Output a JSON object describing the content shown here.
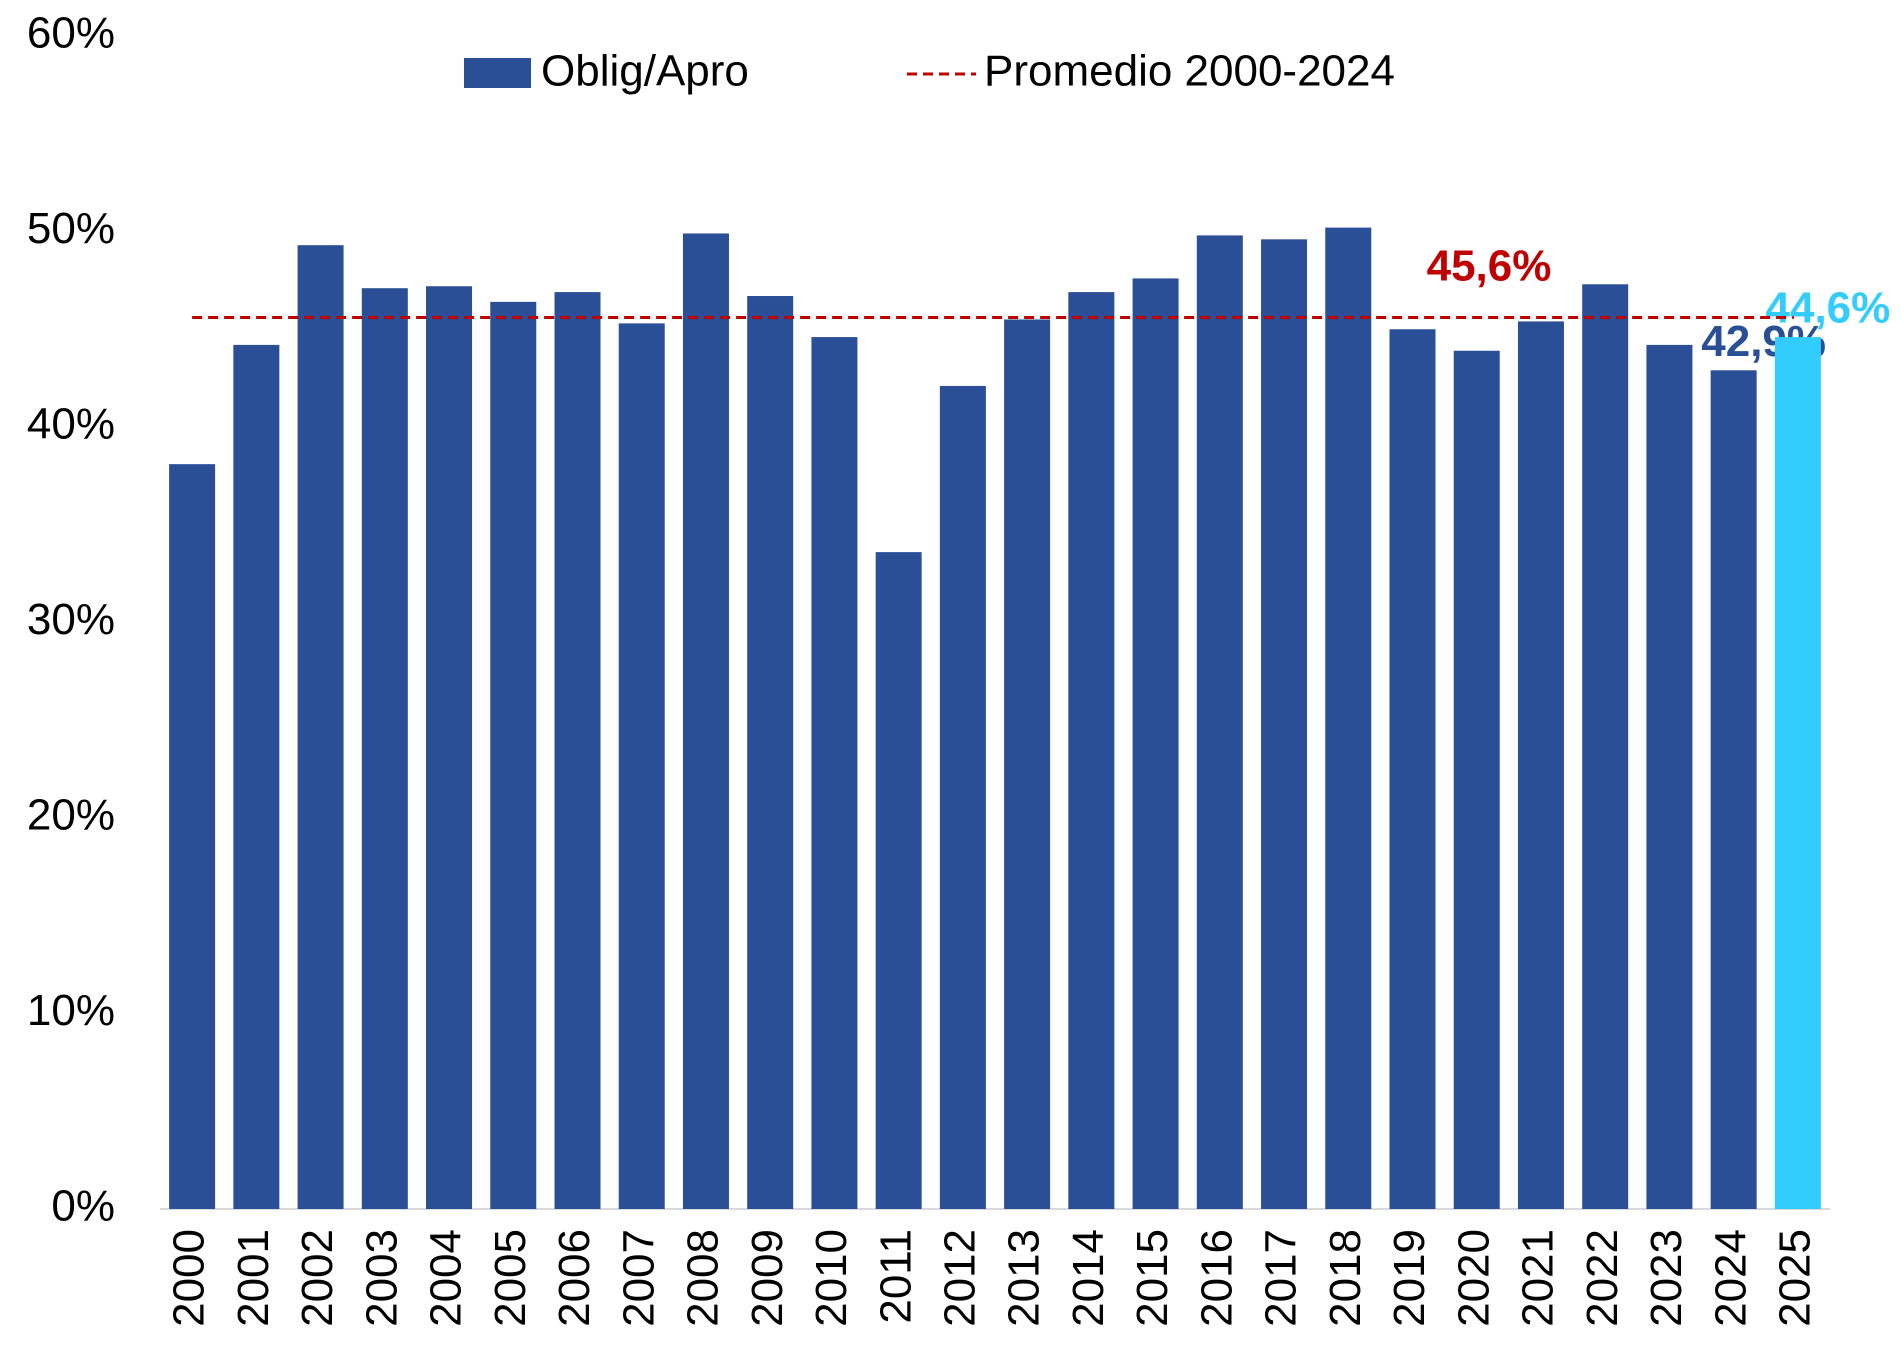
{
  "chart_data": {
    "type": "bar",
    "categories": [
      "2000",
      "2001",
      "2002",
      "2003",
      "2004",
      "2005",
      "2006",
      "2007",
      "2008",
      "2009",
      "2010",
      "2011",
      "2012",
      "2013",
      "2014",
      "2015",
      "2016",
      "2017",
      "2018",
      "2019",
      "2020",
      "2021",
      "2022",
      "2023",
      "2024",
      "2025"
    ],
    "series": [
      {
        "name": "Oblig/Apro",
        "color": "#2a4f96",
        "colors": [
          "#2a4f96",
          "#2a4f96",
          "#2a4f96",
          "#2a4f96",
          "#2a4f96",
          "#2a4f96",
          "#2a4f96",
          "#2a4f96",
          "#2a4f96",
          "#2a4f96",
          "#2a4f96",
          "#2a4f96",
          "#2a4f96",
          "#2a4f96",
          "#2a4f96",
          "#2a4f96",
          "#2a4f96",
          "#2a4f96",
          "#2a4f96",
          "#2a4f96",
          "#2a4f96",
          "#2a4f96",
          "#2a4f96",
          "#2a4f96",
          "#2a4f96",
          "#33ccff"
        ],
        "values": [
          38.1,
          44.2,
          49.3,
          47.1,
          47.2,
          46.4,
          46.9,
          45.3,
          49.9,
          46.7,
          44.6,
          33.6,
          42.1,
          45.5,
          46.9,
          47.6,
          49.8,
          49.6,
          50.2,
          45.0,
          43.9,
          45.4,
          47.3,
          44.2,
          42.9,
          44.6
        ],
        "value_labels": [
          null,
          null,
          null,
          null,
          null,
          null,
          null,
          null,
          null,
          null,
          null,
          null,
          null,
          null,
          null,
          null,
          null,
          null,
          null,
          null,
          null,
          null,
          null,
          null,
          "42,9%",
          "44,6%"
        ]
      }
    ],
    "average": {
      "name": "Promedio 2000-2024",
      "value": 45.6,
      "label": "45,6%",
      "color": "#c00000"
    },
    "ylim": [
      0,
      60
    ],
    "yticks": [
      {
        "value": 0,
        "label": "0%"
      },
      {
        "value": 10,
        "label": "10%"
      },
      {
        "value": 20,
        "label": "20%"
      },
      {
        "value": 30,
        "label": "30%"
      },
      {
        "value": 40,
        "label": "40%"
      },
      {
        "value": 50,
        "label": "50%"
      },
      {
        "value": 60,
        "label": "60%"
      }
    ],
    "grid": false,
    "legend": "top"
  }
}
